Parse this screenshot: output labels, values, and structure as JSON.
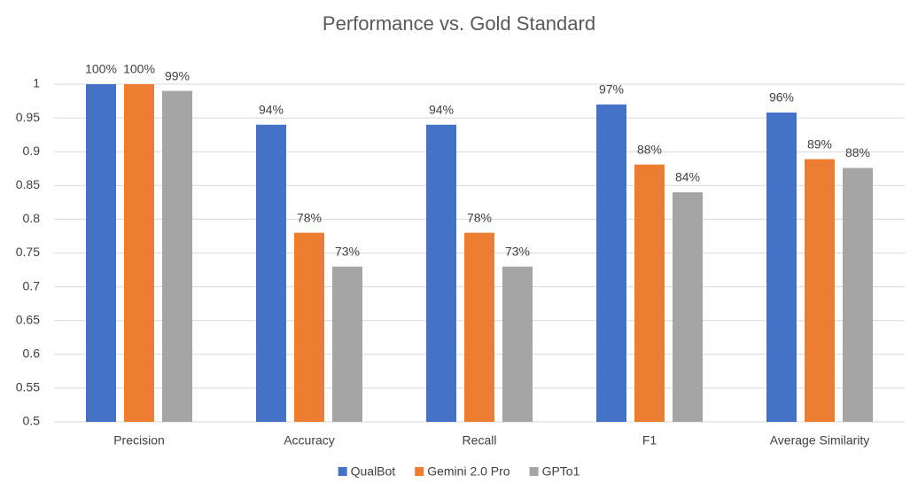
{
  "chart_data": {
    "type": "bar",
    "title": "Performance vs. Gold Standard",
    "categories": [
      "Precision",
      "Accuracy",
      "Recall",
      "F1",
      "Average Similarity"
    ],
    "series": [
      {
        "name": "QualBot",
        "color": "#4472c4",
        "values": [
          1,
          0.94,
          0.94,
          0.97,
          0.958
        ],
        "value_labels": [
          "100%",
          "94%",
          "94%",
          "97%",
          "96%"
        ]
      },
      {
        "name": "Gemini 2.0 Pro",
        "color": "#ed7d31",
        "values": [
          1,
          0.78,
          0.78,
          0.881,
          0.889
        ],
        "value_labels": [
          "100%",
          "78%",
          "78%",
          "88%",
          "89%"
        ]
      },
      {
        "name": "GPTo1",
        "color": "#a5a5a5",
        "values": [
          0.99,
          0.73,
          0.73,
          0.84,
          0.876
        ],
        "value_labels": [
          "99%",
          "73%",
          "73%",
          "84%",
          "88%"
        ]
      }
    ],
    "ylim": [
      0.5,
      1
    ],
    "yticks": [
      0.5,
      0.55,
      0.6,
      0.65,
      0.7,
      0.75,
      0.8,
      0.85,
      0.9,
      0.95,
      1
    ],
    "grid": true,
    "legend": "bottom"
  }
}
